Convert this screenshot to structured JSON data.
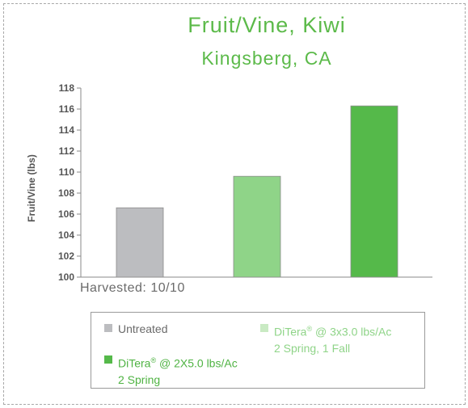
{
  "chart_data": {
    "type": "bar",
    "title": "Fruit/Vine, Kiwi",
    "subtitle": "Kingsberg, CA",
    "ylabel": "Fruit/Vine (lbs)",
    "xlabel": "",
    "ylim": [
      100,
      118
    ],
    "yticks": [
      100,
      102,
      104,
      106,
      108,
      110,
      112,
      114,
      116,
      118
    ],
    "annotation": "Harvested: 10/10",
    "series": [
      {
        "name": "Untreated",
        "value": 106.6,
        "color": "#bcbdc0"
      },
      {
        "name": "DiTera® @ 3x3.0 lbs/Ac",
        "name_line2": "2 Spring, 1 Fall",
        "value": 109.6,
        "color": "#8fd488"
      },
      {
        "name": "DiTera® @ 2X5.0 lbs/Ac",
        "name_line2": "2 Spring",
        "value": 116.3,
        "color": "#55b94a"
      }
    ],
    "legend_placement": "bottom",
    "grid": false
  },
  "legend": {
    "item1": {
      "label": "Untreated",
      "color": "#bcbdc0",
      "text_color": "#6a6a6a"
    },
    "item2": {
      "label_main": "DiTera",
      "label_reg": "®",
      "label_rest": " @ 3x3.0 lbs/Ac",
      "label_line2": "2 Spring, 1 Fall",
      "color": "#c9eac3",
      "text_color": "#8fd488"
    },
    "item3": {
      "label_main": "DiTera",
      "label_reg": "®",
      "label_rest": " @ 2X5.0 lbs/Ac",
      "label_line2": "2 Spring",
      "color": "#55b94a",
      "text_color": "#4fb343"
    }
  }
}
